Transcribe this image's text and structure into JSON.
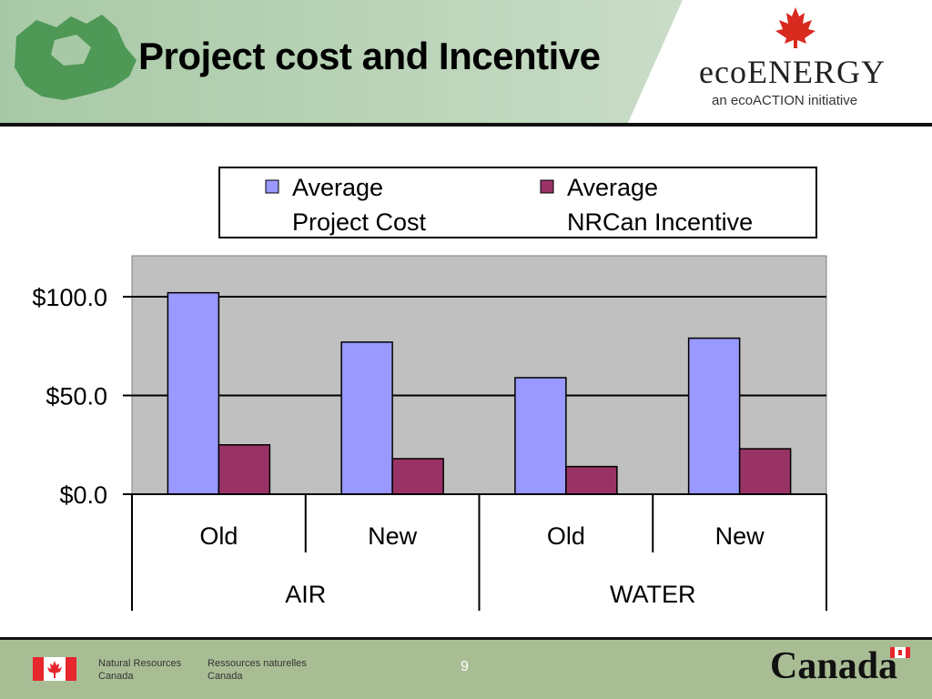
{
  "slide": {
    "title": "Project cost and Incentive",
    "page_number": "9"
  },
  "branding": {
    "logo_word": "ecoENERGY",
    "logo_tagline": "an ecoACTION initiative",
    "footer_en_line1": "Natural Resources",
    "footer_en_line2": "Canada",
    "footer_fr_line1": "Ressources naturelles",
    "footer_fr_line2": "Canada",
    "wordmark": "Canada"
  },
  "colors": {
    "project_cost": "#9999ff",
    "incentive": "#993366",
    "plot_bg": "#c0c0c0",
    "header_green": "#9dbf9e",
    "footer_green": "#a9bd95",
    "flag_red": "#e8262e"
  },
  "chart_data": {
    "type": "bar",
    "categories": [
      "Old",
      "New",
      "Old",
      "New"
    ],
    "groups": [
      {
        "label": "AIR",
        "categories": [
          "Old",
          "New"
        ]
      },
      {
        "label": "WATER",
        "categories": [
          "Old",
          "New"
        ]
      }
    ],
    "series": [
      {
        "name": "Average Project Cost",
        "legend_lines": [
          "Average",
          "Project Cost"
        ],
        "values": [
          102,
          77,
          59,
          79
        ]
      },
      {
        "name": "Average NRCan Incentive",
        "legend_lines": [
          "Average",
          "NRCan Incentive"
        ],
        "values": [
          25,
          18,
          14,
          23
        ]
      }
    ],
    "yticks": [
      "$0.0",
      "$50.0",
      "$100.0"
    ],
    "ytick_values": [
      0,
      50,
      100
    ],
    "ylim": [
      0,
      120
    ],
    "grid": true,
    "legend_position": "top"
  }
}
